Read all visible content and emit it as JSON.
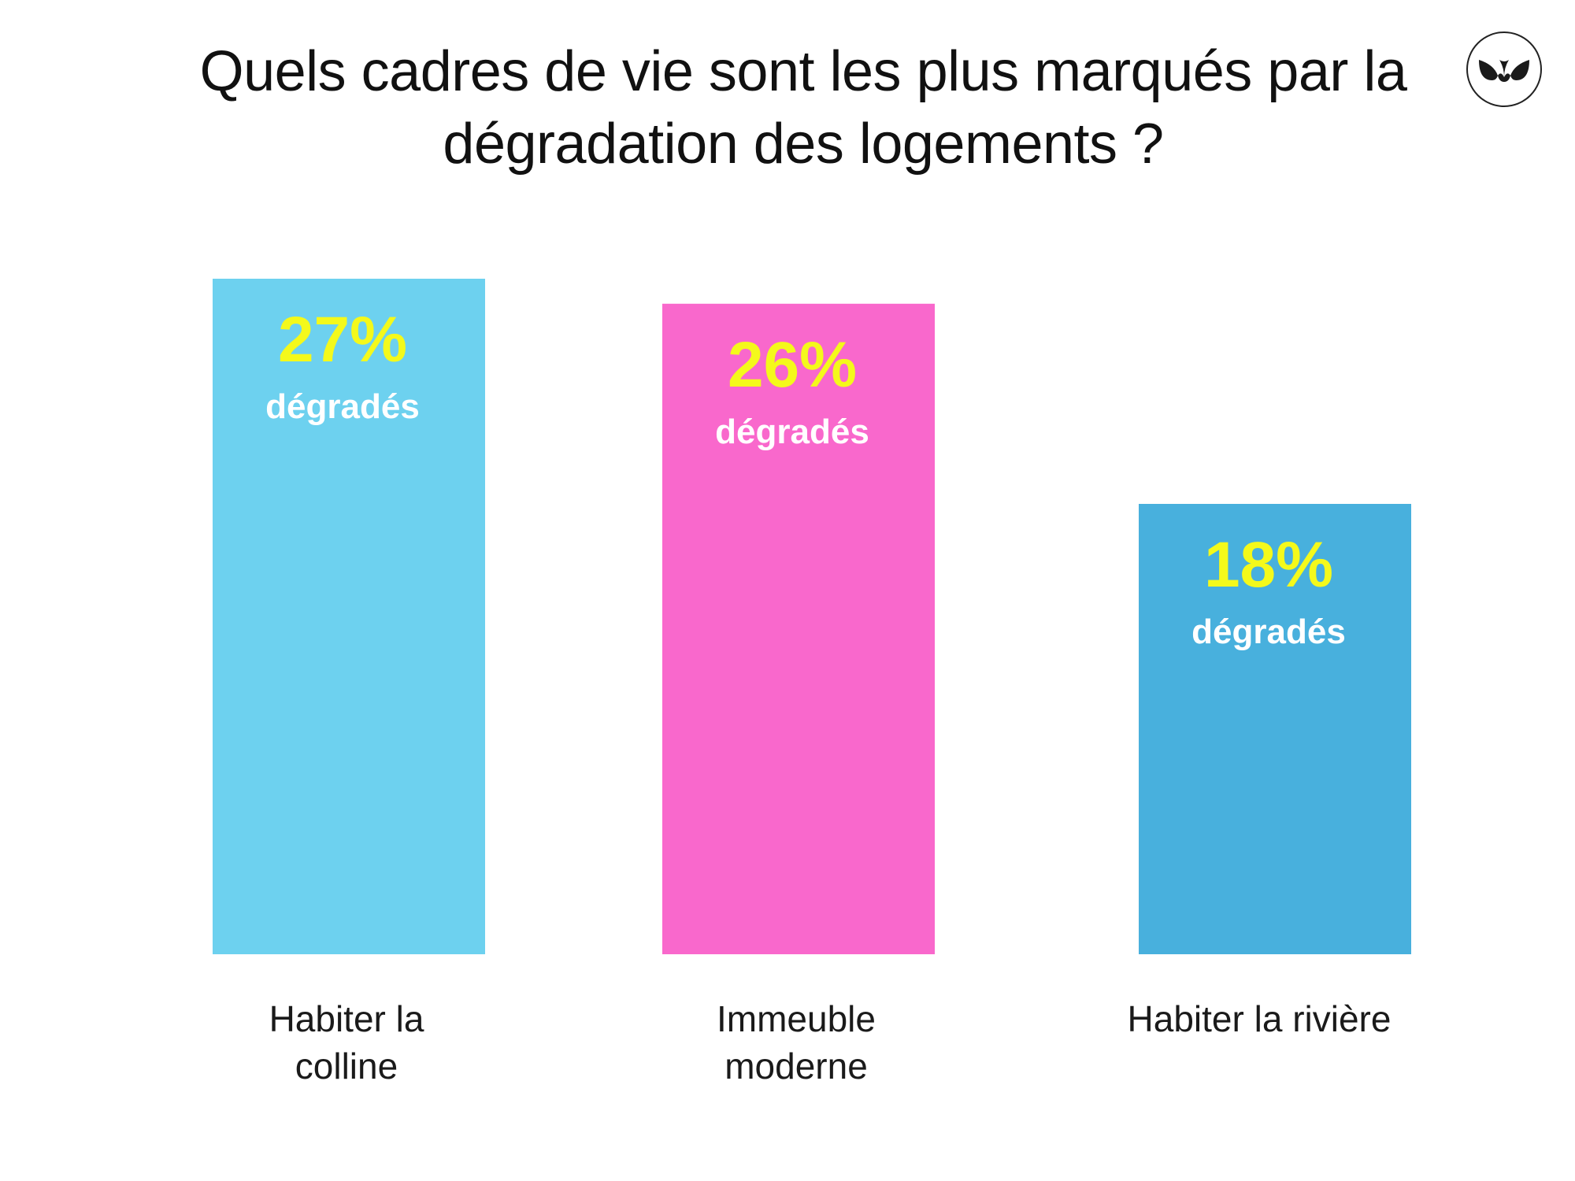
{
  "chart_data": {
    "type": "bar",
    "title": "Quels cadres de vie sont les plus marqués par la dégradation des logements ?",
    "categories": [
      [
        "Habiter la",
        "colline"
      ],
      [
        "Immeuble",
        "moderne"
      ],
      [
        "Habiter la rivière"
      ]
    ],
    "values": [
      27,
      26,
      18
    ],
    "data_labels": [
      "27%",
      "26%",
      "18%"
    ],
    "value_unit_label": "dégradés",
    "bar_colors": [
      "#6dd1ef",
      "#f968cc",
      "#48b0dd"
    ],
    "value_label_color": "#f4f91b",
    "unit_label_color": "#ffffff",
    "category_label_color": "#1a1a1a",
    "xlabel": "",
    "ylabel": "",
    "ylim": [
      0,
      27
    ],
    "grid": false
  },
  "logo": {
    "icon": "brand-logo-icon",
    "color": "#1a1a1a"
  }
}
